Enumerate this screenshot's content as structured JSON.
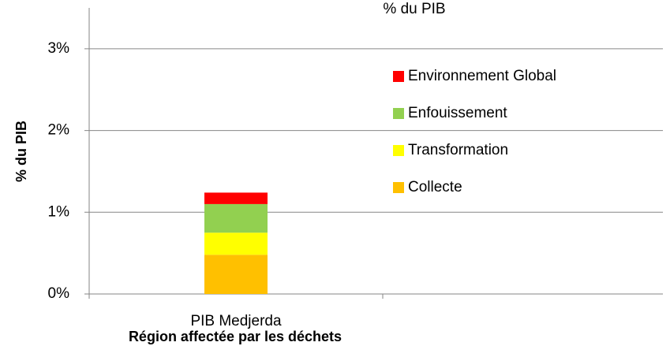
{
  "chart_data": {
    "type": "stacked_bar",
    "title": "% du PIB",
    "x_label": "Région affectée par les déchets",
    "y_label": "% du PIB",
    "categories": [
      "PIB Medjerda"
    ],
    "series": [
      {
        "name": "Collecte",
        "color": "#ffc000",
        "values": [
          0.48
        ]
      },
      {
        "name": "Transformation",
        "color": "#ffff00",
        "values": [
          0.27
        ]
      },
      {
        "name": "Enfouissement",
        "color": "#92d050",
        "values": [
          0.35
        ]
      },
      {
        "name": "Environnement Global",
        "color": "#ff0000",
        "values": [
          0.14
        ]
      }
    ],
    "ylim": [
      0,
      3.5
    ],
    "yticks": [
      {
        "value": 0,
        "label": "0%"
      },
      {
        "value": 1,
        "label": "1%"
      },
      {
        "value": 2,
        "label": "2%"
      },
      {
        "value": 3,
        "label": "3%"
      }
    ],
    "grid": true,
    "legend": "right"
  }
}
